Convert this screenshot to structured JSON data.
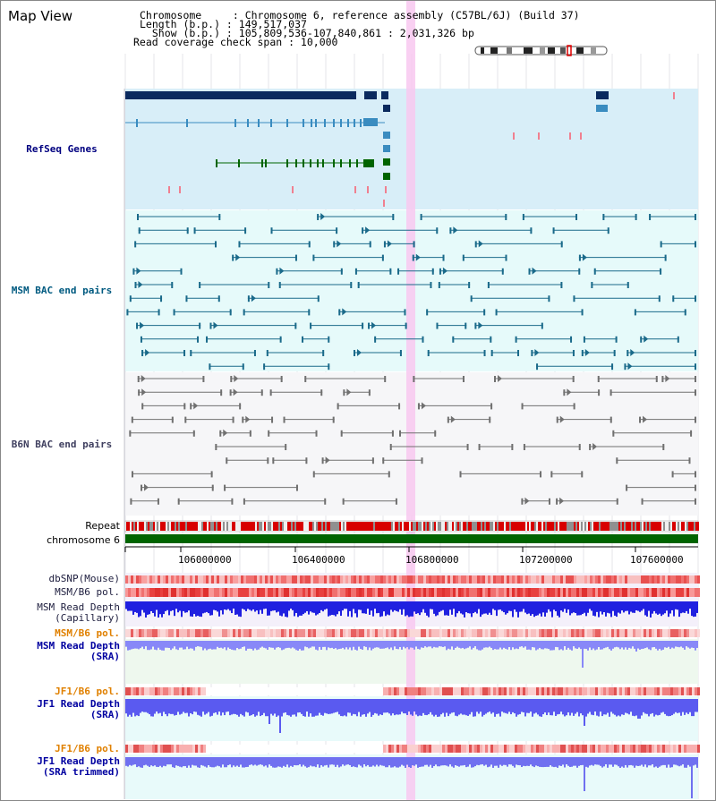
{
  "view": {
    "title": "Map View",
    "chromosome_line": "Chromosome     : Chromosome 6, reference assembly (C57BL/6J) (Build 37)",
    "length_line": "Length (b.p.) : 149,517,037",
    "show_line": "  Show (b.p.) : 105,809,536-107,840,861 : 2,031,326 bp",
    "span_line": "Read coverage check span : 10,000"
  },
  "tracks": {
    "refseq": "RefSeq Genes",
    "msm_bac": "MSM BAC end pairs",
    "b6n_bac": "B6N BAC end pairs",
    "repeat": "Repeat",
    "chromosome": "chromosome 6",
    "dbsnp": "dbSNP(Mouse)",
    "msm_b6_pol": "MSM/B6 pol.",
    "msm_depth_cap": "MSM Read Depth\n(Capillary)",
    "msm_b6_pol2": "MSM/B6 pol.",
    "msm_depth_sra": "MSM Read Depth\n(SRA)",
    "jf1_b6_pol": "JF1/B6 pol.",
    "jf1_depth_sra": "JF1 Read Depth\n(SRA)",
    "jf1_b6_pol2": "JF1/B6 pol.",
    "jf1_depth_trim": "JF1 Read Depth\n(SRA trimmed)"
  },
  "axis": {
    "ticks": [
      "106000000",
      "106400000",
      "106800000",
      "107200000",
      "107600000"
    ]
  },
  "colors": {
    "refseq_bg": "#d8eef8",
    "msm_bg": "#e6fafa",
    "b6n_bg": "#f6f6f8",
    "gene_dark": "#0a2a5e",
    "gene_mid": "#3a8cc0",
    "gene_green": "#006400",
    "msm_pair": "#1a6a8a",
    "b6n_pair": "#707070",
    "repeat_red": "#d80000",
    "chrom_green": "#006400",
    "depth_blue": "#3030e0",
    "highlight": "#f8c8f0",
    "label_navy": "#000080",
    "label_teal": "#005a80",
    "label_orange": "#e08000",
    "label_dark": "#202040"
  }
}
